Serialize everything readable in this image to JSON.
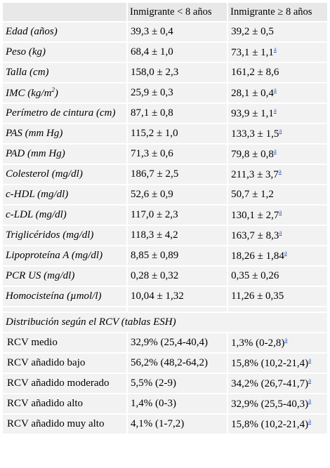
{
  "header": {
    "col0": "",
    "col1": "Inmigrante < 8 años",
    "col2": "Inmigrante ≥ 8 años"
  },
  "rows": [
    {
      "label": "Edad (años)",
      "v1": "39,3 ± 0,4",
      "v2": "39,2 ± 0,5",
      "ref": ""
    },
    {
      "label": "Peso (kg)",
      "v1": "68,4 ± 1,0",
      "v2": "73,1 ± 1,1",
      "ref": "a"
    },
    {
      "label": "Talla (cm)",
      "v1": "158,0 ± 2,3",
      "v2": "161,2 ± 8,6",
      "ref": ""
    },
    {
      "label": "IMC (kg/m",
      "sup": "2",
      "label_end": ")",
      "v1": "25,9 ± 0,3",
      "v2": "28,1 ± 0,4",
      "ref": "a"
    },
    {
      "label": "Perímetro de cintura (cm)",
      "v1": "87,1 ± 0,8",
      "v2": "93,9 ± 1,1",
      "ref": "a"
    },
    {
      "label": "PAS (mm Hg)",
      "v1": "115,2 ± 1,0",
      "v2": "133,3 ± 1,5",
      "ref": "a"
    },
    {
      "label": "PAD (mm Hg)",
      "v1": "71,3 ± 0,6",
      "v2": "79,8 ± 0,8",
      "ref": "a"
    },
    {
      "label": "Colesterol (mg/dl)",
      "v1": "186,7 ± 2,5",
      "v2": "211,3 ± 3,7",
      "ref": "a"
    },
    {
      "label": "c-HDL (mg/dl)",
      "v1": "52,6 ± 0,9",
      "v2": "50,7 ± 1,2",
      "ref": ""
    },
    {
      "label": "c-LDL (mg/dl)",
      "v1": "117,0 ± 2,3",
      "v2": "130,1 ± 2,7",
      "ref": "a"
    },
    {
      "label": "Triglicéridos (mg/dl)",
      "v1": "118,3 ± 4,2",
      "v2": "163,7 ± 8,3",
      "ref": "a"
    },
    {
      "label": "Lipoproteína A (mg/dl)",
      "v1": "8,85 ± 0,89",
      "v2": "18,26 ± 1,84",
      "ref": "a"
    },
    {
      "label": "PCR US (mg/dl)",
      "v1": "0,28 ± 0,32",
      "v2": "0,35 ± 0,26",
      "ref": ""
    },
    {
      "label": "Homocisteína (µmol/l)",
      "v1": "10,04 ± 1,32",
      "v2": "11,26 ± 0,35",
      "ref": ""
    }
  ],
  "section_title": "Distribución según el RCV (tablas ESH)",
  "rcv_rows": [
    {
      "label": "RCV medio",
      "v1": "32,9% (25,4-40,4)",
      "v2": "1,3% (0-2,8)",
      "ref": "a"
    },
    {
      "label": "RCV añadido bajo",
      "v1": "56,2% (48,2-64,2)",
      "v2": "15,8% (10,2-21,4)",
      "ref": "a"
    },
    {
      "label": "RCV añadido moderado",
      "v1": "5,5% (2-9)",
      "v2": "34,2% (26,7-41,7)",
      "ref": "a"
    },
    {
      "label": "RCV añadido alto",
      "v1": "1,4% (0-3)",
      "v2": "32,9% (25,5-40,3)",
      "ref": "a"
    },
    {
      "label": "RCV añadido muy alto",
      "v1": "4,1% (1-7,2)",
      "v2": "15,8% (10,2-21,4)",
      "ref": "a"
    }
  ]
}
